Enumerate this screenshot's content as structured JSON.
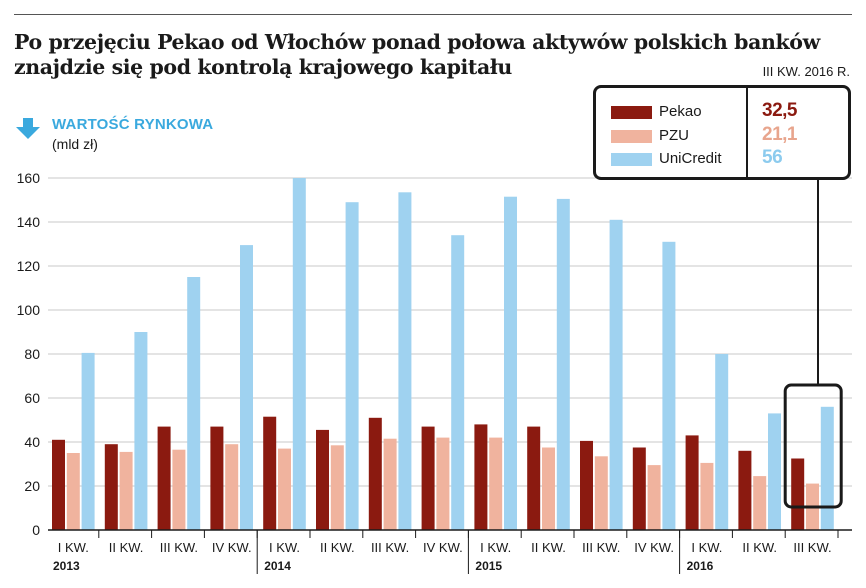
{
  "title": "Po przejęciu Pekao od Włochów ponad połowa aktywów polskich banków znajdzie się pod kontrolą krajowego kapitału",
  "period_label": "III KW. 2016 R.",
  "metric_label": "WARTOŚĆ RYNKOWA",
  "unit_label": "(mld zł)",
  "legend": [
    {
      "name": "Pekao",
      "value": "32,5",
      "color": "#8b1a10",
      "value_color": "#8b1a10"
    },
    {
      "name": "PZU",
      "value": "21,1",
      "color": "#f0b39e",
      "value_color": "#e8a58d"
    },
    {
      "name": "UniCredit",
      "value": "56",
      "color": "#9fd2f0",
      "value_color": "#8ccbee"
    }
  ],
  "colors": {
    "arrow": "#3aa9de",
    "axis": "#1a1a1a",
    "grid": "#c8c8c8",
    "frame": "#1a1a1a"
  },
  "chart_data": {
    "type": "bar",
    "categories": [
      "I KW.",
      "II KW.",
      "III KW.",
      "IV KW.",
      "I KW.",
      "II KW.",
      "III KW.",
      "IV KW.",
      "I KW.",
      "II KW.",
      "III KW.",
      "IV KW.",
      "I KW.",
      "II KW.",
      "III KW."
    ],
    "year_labels": [
      {
        "label": "2013",
        "category_index": 0
      },
      {
        "label": "2014",
        "category_index": 4
      },
      {
        "label": "2015",
        "category_index": 8
      },
      {
        "label": "2016",
        "category_index": 12
      }
    ],
    "series": [
      {
        "name": "Pekao",
        "color": "#8b1a10",
        "values": [
          41,
          39,
          47,
          47,
          51.5,
          45.5,
          51,
          47,
          48,
          47,
          40.5,
          37.5,
          43,
          36,
          32.5
        ]
      },
      {
        "name": "PZU",
        "color": "#f0b39e",
        "values": [
          35,
          35.5,
          36.5,
          39,
          37,
          38.5,
          41.5,
          42,
          42,
          37.5,
          33.5,
          29.5,
          30.5,
          24.5,
          21.1
        ]
      },
      {
        "name": "UniCredit",
        "color": "#9fd2f0",
        "values": [
          80.5,
          90,
          115,
          129.5,
          160,
          149,
          153.5,
          134,
          151.5,
          150.5,
          141,
          131,
          80,
          53,
          56
        ]
      }
    ],
    "yticks": [
      0,
      20,
      40,
      60,
      80,
      100,
      120,
      140,
      160
    ],
    "ylim": [
      0,
      160
    ],
    "grid": true,
    "legend_position": "top-right",
    "highlight_category_index": 14
  }
}
